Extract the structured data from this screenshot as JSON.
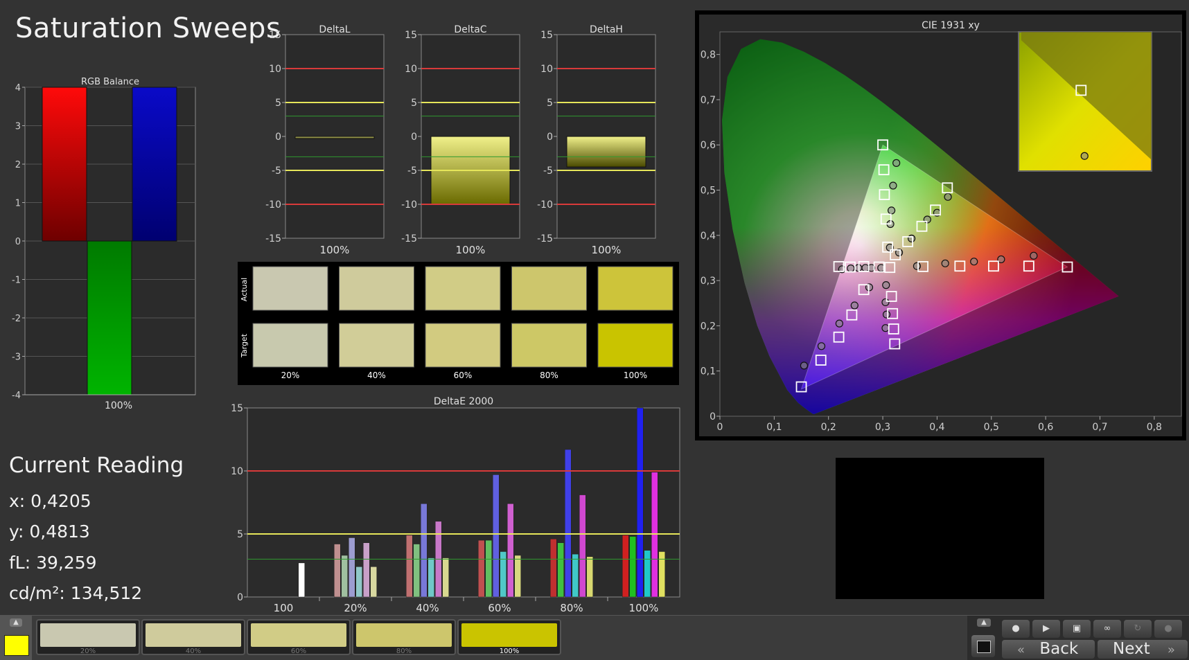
{
  "title": "Saturation Sweeps",
  "colors": {
    "bg": "#333333",
    "red_line": "#d93a3a",
    "yellow_line": "#e6e65a",
    "green_line": "#2f9a2f",
    "accent_yellow": "#ffff00"
  },
  "current_reading": {
    "title": "Current Reading",
    "x": "x: 0,4205",
    "y": "y: 0,4813",
    "fl": "fL: 39,259",
    "cdm2": "cd/m²: 134,512"
  },
  "chart_data": [
    {
      "type": "bar",
      "title": "RGB Balance",
      "categories": [
        "100%"
      ],
      "series": [
        {
          "name": "Red",
          "values": [
            4
          ],
          "color": "#e00000"
        },
        {
          "name": "Green",
          "values": [
            -4
          ],
          "color": "#00a000"
        },
        {
          "name": "Blue",
          "values": [
            4
          ],
          "color": "#1010d0"
        }
      ],
      "ylim": [
        -4,
        4
      ],
      "yticks": [
        "4",
        "3",
        "2",
        "1",
        "0",
        "-1",
        "-2",
        "-3",
        "-4"
      ],
      "grid": true
    },
    {
      "type": "bar",
      "title": "DeltaL",
      "categories": [
        "100%"
      ],
      "values": [
        -0.2
      ],
      "ylim": [
        -15,
        15
      ],
      "yticks": [
        "15",
        "10",
        "5",
        "0",
        "-5",
        "-10",
        "-15"
      ],
      "reference_lines": [
        10,
        5,
        3,
        -3,
        -5,
        -10
      ]
    },
    {
      "type": "bar",
      "title": "DeltaC",
      "categories": [
        "100%"
      ],
      "values": [
        -10
      ],
      "ylim": [
        -15,
        15
      ],
      "yticks": [
        "15",
        "10",
        "5",
        "0",
        "-5",
        "-10",
        "-15"
      ],
      "reference_lines": [
        10,
        5,
        3,
        -3,
        -5,
        -10
      ]
    },
    {
      "type": "bar",
      "title": "DeltaH",
      "categories": [
        "100%"
      ],
      "values": [
        -4.5
      ],
      "ylim": [
        -15,
        15
      ],
      "yticks": [
        "15",
        "10",
        "5",
        "0",
        "-5",
        "-10",
        "-15"
      ],
      "reference_lines": [
        10,
        5,
        3,
        -3,
        -5,
        -10
      ]
    },
    {
      "type": "bar",
      "title": "DeltaE 2000",
      "categories": [
        "100",
        "20%",
        "40%",
        "60%",
        "80%",
        "100%"
      ],
      "groups": [
        {
          "label": "100",
          "values": [
            0,
            0,
            0,
            0,
            0,
            2.7
          ],
          "colors": [
            "#c04040",
            "#40a040",
            "#4040c0",
            "#40b0b0",
            "#b040b0",
            "#ffffff"
          ]
        },
        {
          "label": "20%",
          "values": [
            4.2,
            3.3,
            4.7,
            2.4,
            4.3,
            2.4
          ],
          "colors": [
            "#c09090",
            "#a0c0a0",
            "#9c9cd0",
            "#90c8c8",
            "#c8a0c8",
            "#d8d8a0"
          ]
        },
        {
          "label": "40%",
          "values": [
            4.9,
            4.2,
            7.4,
            3.1,
            6.0,
            3.1
          ],
          "colors": [
            "#c07070",
            "#80c080",
            "#7878d8",
            "#70c8c8",
            "#c878c8",
            "#d8d890"
          ]
        },
        {
          "label": "60%",
          "values": [
            4.5,
            4.5,
            9.7,
            3.6,
            7.4,
            3.3
          ],
          "colors": [
            "#c05050",
            "#60c060",
            "#6060e0",
            "#50c8c8",
            "#d060d0",
            "#d8d880"
          ]
        },
        {
          "label": "80%",
          "values": [
            4.6,
            4.3,
            11.7,
            3.4,
            8.1,
            3.2
          ],
          "colors": [
            "#c03030",
            "#40c040",
            "#4040e8",
            "#40c8c8",
            "#d048d0",
            "#d8d870"
          ]
        },
        {
          "label": "100%",
          "values": [
            4.9,
            4.8,
            15,
            3.7,
            9.9,
            3.6
          ],
          "colors": [
            "#d02020",
            "#20c020",
            "#2020f0",
            "#20c8c8",
            "#e030e0",
            "#e0e060"
          ]
        }
      ],
      "ylim": [
        0,
        15
      ],
      "yticks": [
        "15",
        "10",
        "5",
        "0"
      ],
      "reference_lines": [
        10,
        5,
        3
      ]
    },
    {
      "type": "scatter",
      "title": "CIE 1931 xy",
      "xlim": [
        0,
        0.85
      ],
      "ylim": [
        0,
        0.85
      ],
      "xticks": [
        "0",
        "0,1",
        "0,2",
        "0,3",
        "0,4",
        "0,5",
        "0,6",
        "0,7",
        "0,8"
      ],
      "yticks": [
        "0",
        "0,1",
        "0,2",
        "0,3",
        "0,4",
        "0,5",
        "0,6",
        "0,7",
        "0,8"
      ],
      "gamut_triangle": [
        [
          0.64,
          0.33
        ],
        [
          0.3,
          0.6
        ],
        [
          0.15,
          0.06
        ]
      ],
      "targets": [
        [
          0.313,
          0.329
        ],
        [
          0.374,
          0.331
        ],
        [
          0.442,
          0.332
        ],
        [
          0.504,
          0.332
        ],
        [
          0.569,
          0.332
        ],
        [
          0.64,
          0.33
        ],
        [
          0.309,
          0.374
        ],
        [
          0.306,
          0.436
        ],
        [
          0.303,
          0.49
        ],
        [
          0.302,
          0.545
        ],
        [
          0.3,
          0.6
        ],
        [
          0.323,
          0.357
        ],
        [
          0.346,
          0.386
        ],
        [
          0.372,
          0.42
        ],
        [
          0.397,
          0.456
        ],
        [
          0.419,
          0.505
        ],
        [
          0.293,
          0.33
        ],
        [
          0.265,
          0.331
        ],
        [
          0.24,
          0.33
        ],
        [
          0.219,
          0.331
        ],
        [
          0.265,
          0.28
        ],
        [
          0.243,
          0.224
        ],
        [
          0.219,
          0.175
        ],
        [
          0.186,
          0.124
        ],
        [
          0.15,
          0.065
        ],
        [
          0.316,
          0.265
        ],
        [
          0.318,
          0.227
        ],
        [
          0.32,
          0.193
        ],
        [
          0.322,
          0.16
        ]
      ],
      "measured": [
        [
          0.363,
          0.332
        ],
        [
          0.415,
          0.338
        ],
        [
          0.468,
          0.342
        ],
        [
          0.518,
          0.347
        ],
        [
          0.578,
          0.355
        ],
        [
          0.313,
          0.373
        ],
        [
          0.314,
          0.425
        ],
        [
          0.316,
          0.455
        ],
        [
          0.319,
          0.51
        ],
        [
          0.325,
          0.56
        ],
        [
          0.33,
          0.362
        ],
        [
          0.353,
          0.393
        ],
        [
          0.382,
          0.435
        ],
        [
          0.4,
          0.45
        ],
        [
          0.42,
          0.485
        ],
        [
          0.297,
          0.328
        ],
        [
          0.279,
          0.328
        ],
        [
          0.268,
          0.328
        ],
        [
          0.255,
          0.328
        ],
        [
          0.241,
          0.327
        ],
        [
          0.225,
          0.325
        ],
        [
          0.275,
          0.285
        ],
        [
          0.248,
          0.245
        ],
        [
          0.22,
          0.205
        ],
        [
          0.187,
          0.155
        ],
        [
          0.155,
          0.112
        ],
        [
          0.306,
          0.29
        ],
        [
          0.305,
          0.252
        ],
        [
          0.307,
          0.225
        ],
        [
          0.305,
          0.195
        ]
      ],
      "inset_target": [
        0.4205,
        0.505
      ],
      "inset_measured": [
        0.4205,
        0.4813
      ]
    }
  ],
  "swatches": {
    "row_labels": [
      "Actual",
      "Target"
    ],
    "labels": [
      "20%",
      "40%",
      "60%",
      "80%",
      "100%"
    ],
    "actual": [
      "#c9c8b0",
      "#cfcb9c",
      "#d1cc86",
      "#cdc66c",
      "#cdc43a"
    ],
    "target": [
      "#c8c9ae",
      "#d1cd98",
      "#d2cb80",
      "#cdc866",
      "#c9c400"
    ]
  },
  "bottom_bar": {
    "tiles": [
      {
        "label": "20%",
        "color": "#c9c8b0"
      },
      {
        "label": "40%",
        "color": "#cfcb9c"
      },
      {
        "label": "60%",
        "color": "#d1cc86"
      },
      {
        "label": "80%",
        "color": "#cdc66c"
      },
      {
        "label": "100%",
        "color": "#cac400"
      }
    ],
    "back_label": "Back",
    "next_label": "Next",
    "controls": [
      "stop-icon",
      "play-icon",
      "save-icon",
      "loop-icon",
      "refresh-icon",
      "record-icon"
    ]
  }
}
